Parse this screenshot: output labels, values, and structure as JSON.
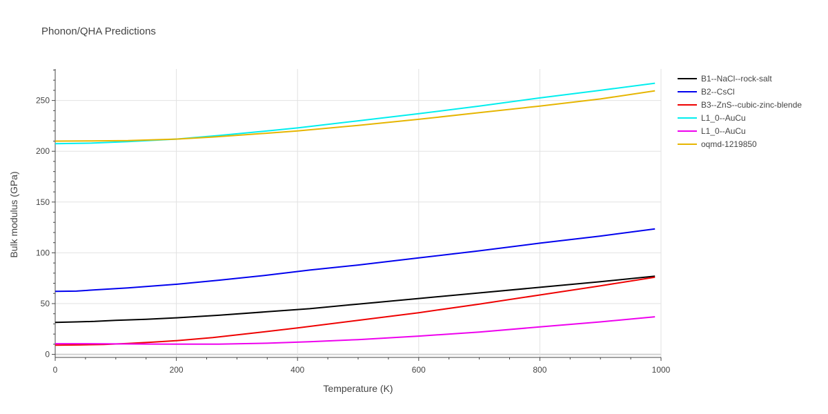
{
  "chart_data": {
    "type": "line",
    "title": "Phonon/QHA Predictions",
    "xlabel": "Temperature (K)",
    "ylabel": "Bulk modulus (GPa)",
    "xlim": [
      0,
      1000
    ],
    "ylim": [
      -3,
      281
    ],
    "xticks": [
      0,
      200,
      400,
      600,
      800,
      1000
    ],
    "yticks": [
      0,
      50,
      100,
      150,
      200,
      250
    ],
    "grid": true,
    "legend_position": "right",
    "series": [
      {
        "name": "B1--NaCl--rock-salt",
        "color": "#000000",
        "x": [
          0,
          35,
          65,
          100,
          150,
          200,
          270,
          350,
          420,
          500,
          600,
          700,
          800,
          900,
          990
        ],
        "y": [
          31.5,
          32,
          32.5,
          33.5,
          34.5,
          36,
          38.5,
          42,
          45,
          49.5,
          55,
          60.5,
          66,
          71.5,
          77
        ]
      },
      {
        "name": "B2--CsCl",
        "color": "#0000ee",
        "x": [
          0,
          35,
          65,
          120,
          200,
          270,
          350,
          420,
          500,
          600,
          700,
          800,
          900,
          990
        ],
        "y": [
          62,
          62.3,
          63.5,
          65.5,
          69,
          73,
          78,
          83,
          88,
          95,
          102,
          109.5,
          116.5,
          123.5
        ]
      },
      {
        "name": "B3--ZnS--cubic-zinc-blende",
        "color": "#ee0000",
        "x": [
          0,
          40,
          80,
          120,
          160,
          200,
          260,
          320,
          400,
          500,
          600,
          700,
          800,
          900,
          990
        ],
        "y": [
          9,
          9.3,
          9.8,
          10.8,
          12,
          13.5,
          16.5,
          20.5,
          26,
          33.5,
          41,
          49.5,
          58.5,
          67.5,
          76
        ]
      },
      {
        "name": "L1_0--AuCu",
        "color": "#00eeee",
        "x": [
          0,
          60,
          120,
          200,
          270,
          350,
          400,
          500,
          600,
          700,
          800,
          900,
          990
        ],
        "y": [
          207.5,
          208,
          209.5,
          212,
          215.5,
          220,
          223,
          230,
          237,
          244.5,
          252.5,
          260,
          267
        ]
      },
      {
        "name": "L1_0--AuCu",
        "color": "#ee00ee",
        "x": [
          0,
          50,
          100,
          150,
          200,
          270,
          350,
          420,
          500,
          600,
          700,
          800,
          900,
          990
        ],
        "y": [
          10.5,
          10.5,
          10.3,
          10.2,
          10.1,
          10.1,
          11,
          12.5,
          14.5,
          18,
          22,
          27,
          32,
          37
        ]
      },
      {
        "name": "oqmd-1219850",
        "color": "#e6b500",
        "x": [
          0,
          60,
          120,
          200,
          260,
          320,
          400,
          500,
          600,
          700,
          800,
          900,
          990
        ],
        "y": [
          210,
          210.2,
          210.5,
          212,
          214,
          216.5,
          220,
          225.5,
          231.5,
          238,
          244.5,
          251.5,
          259.5
        ]
      }
    ]
  }
}
